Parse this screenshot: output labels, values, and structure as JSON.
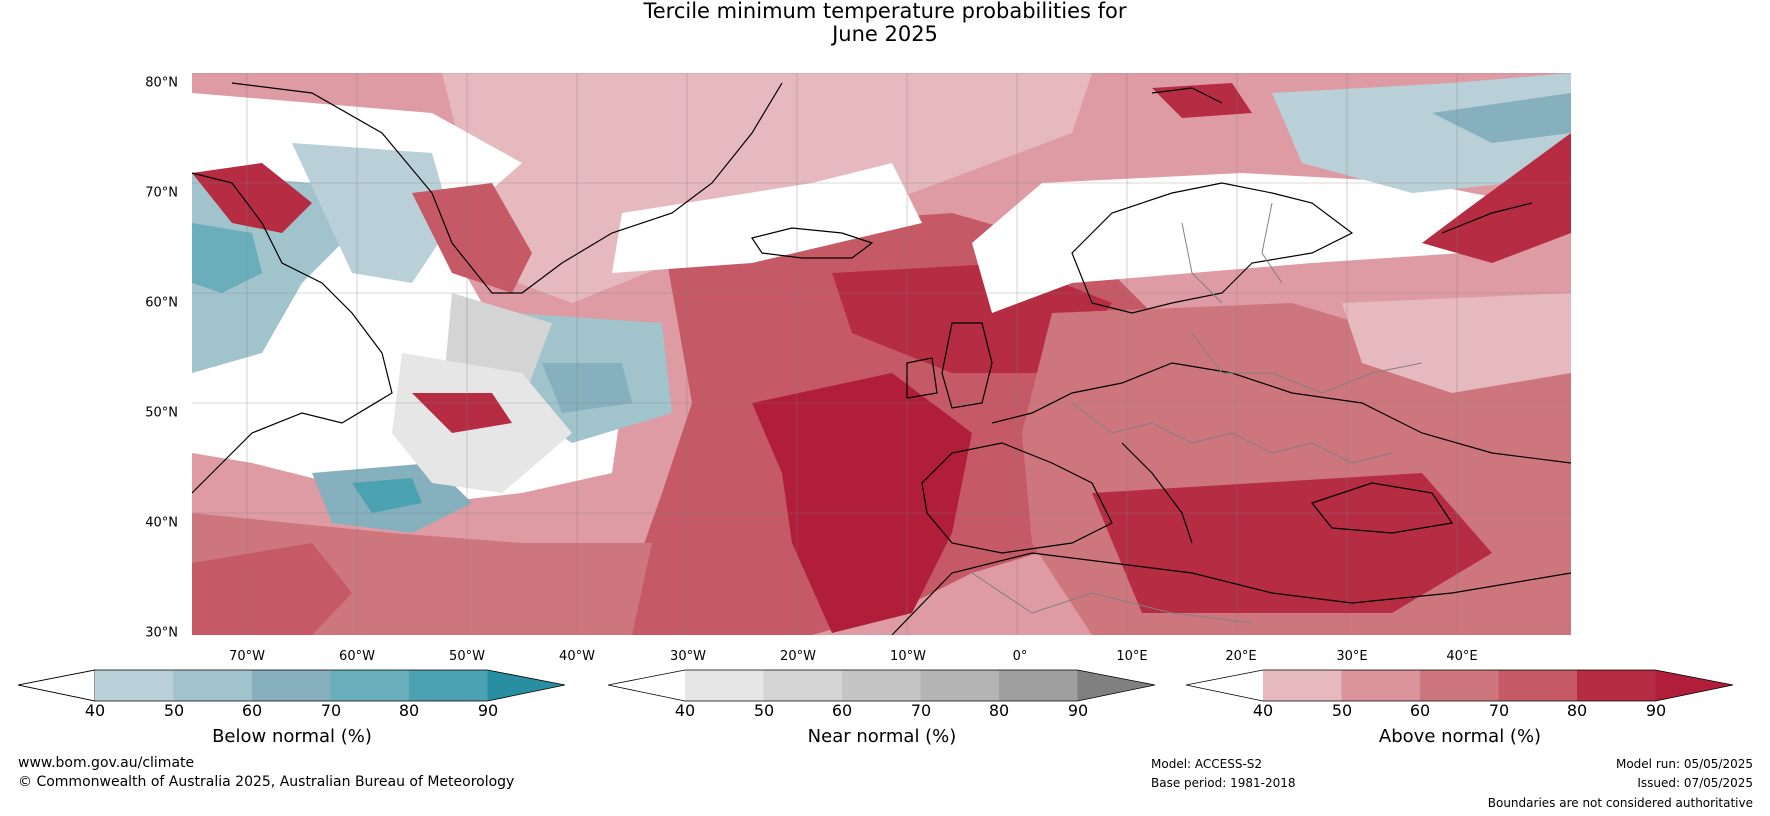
{
  "title": {
    "line1": "Tercile minimum temperature probabilities for",
    "line2": "June 2025"
  },
  "map": {
    "lat_labels": [
      "80°N",
      "70°N",
      "60°N",
      "50°N",
      "40°N",
      "30°N"
    ],
    "lon_labels": [
      "70°W",
      "60°W",
      "50°W",
      "40°W",
      "30°W",
      "20°W",
      "10°W",
      "0°",
      "10°E",
      "20°E",
      "30°E",
      "40°E"
    ],
    "lat_range": [
      "30°N",
      "80°N"
    ],
    "colors": {
      "ocean_base": "#de9ba3",
      "land_outline": "#000000",
      "country_borders": "#808080"
    }
  },
  "colorbars": [
    {
      "title": "Below normal (%)",
      "ticks": [
        "40",
        "50",
        "60",
        "70",
        "80",
        "90"
      ],
      "colors": [
        "#ffffff",
        "#b9d0d8",
        "#a1c3cc",
        "#86b0bd",
        "#6aaebb",
        "#4aa2b2",
        "#2a8ea3"
      ]
    },
    {
      "title": "Near normal (%)",
      "ticks": [
        "40",
        "50",
        "60",
        "70",
        "80",
        "90"
      ],
      "colors": [
        "#ffffff",
        "#e6e6e6",
        "#d4d4d4",
        "#c5c5c5",
        "#b3b4b3",
        "#9f9f9f",
        "#808080"
      ]
    },
    {
      "title": "Above normal (%)",
      "ticks": [
        "40",
        "50",
        "60",
        "70",
        "80",
        "90"
      ],
      "colors": [
        "#ffffff",
        "#e6b9bf",
        "#db949b",
        "#ce767d",
        "#c55a66",
        "#b52c43",
        "#b01e3a"
      ]
    }
  ],
  "footer": {
    "website": "www.bom.gov.au/climate",
    "copyright": "© Commonwealth of Australia 2025, Australian Bureau of Meteorology",
    "model": "Model: ACCESS-S2",
    "base_period": "Base period: 1981-2018",
    "model_run": "Model run: 05/05/2025",
    "issued": "Issued: 07/05/2025",
    "disclaimer": "Boundaries are not considered authoritative"
  }
}
